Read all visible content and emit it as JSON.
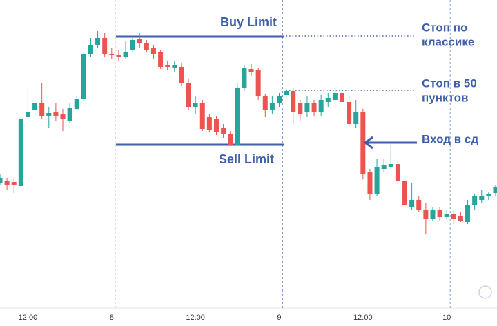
{
  "chart_data": {
    "type": "candlestick",
    "x": [
      0,
      1,
      2,
      3,
      4,
      5,
      6,
      7,
      8,
      9,
      10,
      11,
      12,
      13,
      14,
      15,
      16,
      17,
      18,
      19,
      20,
      21,
      22,
      23,
      24,
      25,
      26,
      27,
      28,
      29,
      30,
      31,
      32,
      33,
      34,
      35,
      36,
      37,
      38,
      39,
      40,
      41,
      42,
      43,
      44,
      45,
      46,
      47,
      48,
      49,
      50,
      51,
      52,
      53,
      54,
      55,
      56,
      57,
      58,
      59,
      60,
      61,
      62,
      63,
      64,
      65,
      66,
      67,
      68,
      69,
      70,
      71
    ],
    "open": [
      208,
      211,
      209,
      203,
      303,
      313,
      323,
      305,
      311,
      308,
      298,
      315,
      329,
      395,
      408,
      418,
      395,
      393,
      391,
      400,
      416,
      411,
      403,
      398,
      378,
      375,
      376,
      353,
      318,
      323,
      303,
      301,
      288,
      278,
      263,
      345,
      373,
      371,
      333,
      313,
      323,
      335,
      341,
      323,
      311,
      323,
      311,
      325,
      328,
      338,
      325,
      293,
      311,
      223,
      191,
      228,
      231,
      235,
      211,
      173,
      183,
      168,
      155,
      168,
      158,
      163,
      160,
      151,
      175,
      183,
      188,
      193
    ],
    "high": [
      221,
      215,
      213,
      303,
      348,
      328,
      353,
      318,
      323,
      315,
      323,
      333,
      398,
      418,
      428,
      425,
      403,
      401,
      413,
      418,
      425,
      415,
      408,
      401,
      385,
      385,
      381,
      358,
      333,
      328,
      308,
      305,
      293,
      283,
      353,
      378,
      380,
      375,
      337,
      333,
      338,
      345,
      345,
      328,
      333,
      328,
      335,
      338,
      345,
      345,
      333,
      328,
      315,
      228,
      243,
      243,
      263,
      241,
      215,
      208,
      188,
      178,
      173,
      173,
      168,
      168,
      165,
      183,
      191,
      198,
      195,
      205
    ],
    "low": [
      205,
      198,
      193,
      201,
      298,
      305,
      301,
      288,
      298,
      283,
      295,
      313,
      327,
      391,
      403,
      391,
      388,
      385,
      388,
      397,
      403,
      397,
      388,
      373,
      371,
      368,
      348,
      313,
      308,
      283,
      281,
      277,
      273,
      261,
      261,
      341,
      363,
      328,
      303,
      308,
      318,
      331,
      293,
      298,
      303,
      305,
      305,
      318,
      323,
      318,
      288,
      288,
      213,
      183,
      188,
      223,
      228,
      205,
      163,
      168,
      165,
      133,
      153,
      153,
      155,
      148,
      151,
      148,
      168,
      178,
      183,
      188
    ],
    "close": [
      215,
      205,
      205,
      301,
      311,
      323,
      305,
      309,
      305,
      301,
      316,
      329,
      395,
      408,
      418,
      395,
      393,
      391,
      398,
      415,
      410,
      401,
      395,
      376,
      376,
      378,
      353,
      318,
      323,
      286,
      285,
      281,
      278,
      263,
      345,
      375,
      369,
      333,
      313,
      323,
      333,
      341,
      310,
      308,
      323,
      311,
      328,
      331,
      338,
      325,
      293,
      311,
      220,
      191,
      231,
      233,
      235,
      211,
      175,
      183,
      168,
      155,
      168,
      158,
      163,
      155,
      153,
      175,
      188,
      188,
      191,
      201
    ],
    "up_color": "#26a69a",
    "down_color": "#ef5350",
    "xlim": [
      0,
      71.2
    ],
    "ylim": [
      0,
      473
    ],
    "xticks": [
      {
        "value": 4,
        "label": "12:00"
      },
      {
        "value": 16,
        "label": "8"
      },
      {
        "value": 28,
        "label": "12:00"
      },
      {
        "value": 40,
        "label": "9"
      },
      {
        "value": 52,
        "label": "12:00"
      },
      {
        "value": 64,
        "label": "10"
      }
    ],
    "xgrid_ticks": [
      1,
      3,
      5
    ],
    "levels": [
      {
        "name": "Buy Limit",
        "value": 420,
        "x": [
          16.6,
          40.7
        ],
        "style": "solid",
        "color": "#3f5fa8"
      },
      {
        "name": "Sell Limit",
        "value": 263,
        "x": [
          16.6,
          40.7
        ],
        "style": "solid",
        "color": "#3f5fa8"
      },
      {
        "value": 421,
        "x": [
          41,
          59.3
        ],
        "style": "dotted",
        "color": "#3f5fa8"
      },
      {
        "value": 342,
        "x": [
          41,
          59.3
        ],
        "style": "dotted",
        "color": "#3f5fa8"
      }
    ],
    "annotations": [
      {
        "lines": [
          "Стоп по",
          "классике"
        ]
      },
      {
        "lines": [
          "Стоп в 50",
          "пунктов"
        ]
      },
      {
        "lines": [
          "Вход в сд"
        ]
      }
    ]
  }
}
